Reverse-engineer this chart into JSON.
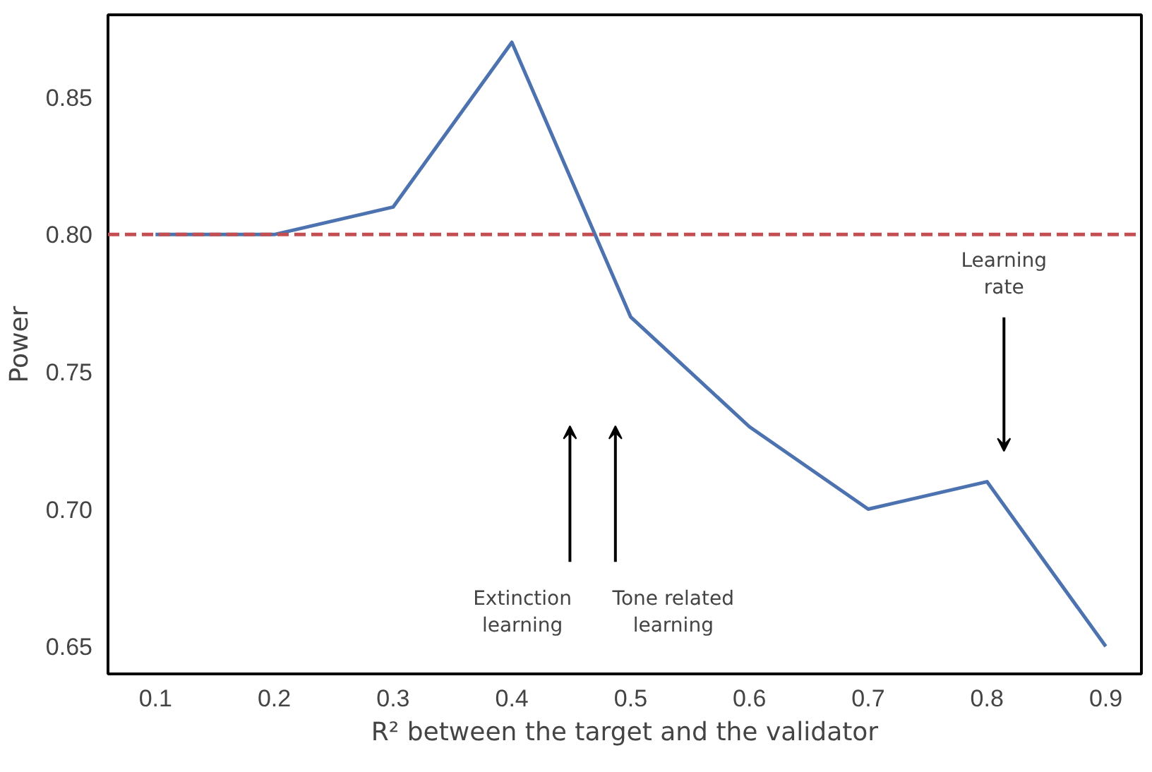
{
  "chart_data": {
    "type": "line",
    "xlabel": "R² between the target and the validator",
    "ylabel": "Power",
    "x": [
      0.1,
      0.2,
      0.3,
      0.4,
      0.5,
      0.6,
      0.7,
      0.8,
      0.9
    ],
    "series": [
      {
        "color": "#4c72b0",
        "values": [
          0.8,
          0.8,
          0.81,
          0.87,
          0.77,
          0.73,
          0.7,
          0.71,
          0.65
        ]
      }
    ],
    "xlim": [
      0.06,
      0.93
    ],
    "ylim": [
      0.64,
      0.88
    ],
    "xticks": [
      0.1,
      0.2,
      0.3,
      0.4,
      0.5,
      0.6,
      0.7,
      0.8,
      0.9
    ],
    "yticks": [
      0.65,
      {
        "value": 0.7,
        "label": "0.70"
      },
      0.75,
      {
        "value": 0.8,
        "label": "0.80"
      },
      0.85
    ],
    "grid": false,
    "marker": "none",
    "line_style": "solid",
    "ref_lines": [
      {
        "axis": "y",
        "value": 0.8,
        "color": "#c44e52",
        "line_style": "dashed"
      }
    ],
    "annotations": [
      "Extinction\nlearning",
      "Tone related\nlearning",
      "Learning\nrate"
    ]
  }
}
